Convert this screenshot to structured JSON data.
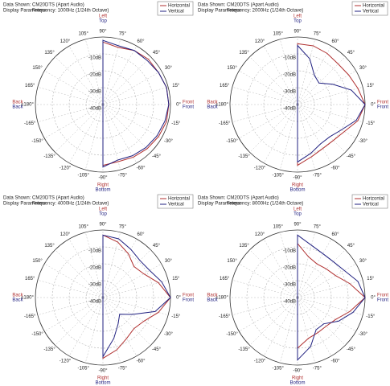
{
  "chart_data": [
    {
      "type": "polar",
      "header": [
        "Data Shown:",
        "CM20DTS (Apart Audio)",
        "Display Parameters:",
        "Frequency: 1000Hz (1/24th Octave)"
      ],
      "directions": {
        "top": [
          "Left",
          "Top"
        ],
        "bottom": [
          "Right",
          "Bottom"
        ],
        "right": [
          "Front",
          "Front"
        ],
        "left": [
          "Back",
          "Back"
        ]
      },
      "x": [
        90,
        75,
        60,
        45,
        30,
        15,
        0,
        -15,
        -30,
        -45,
        -60,
        -75,
        -90
      ],
      "series": [
        {
          "name": "Horizontal",
          "color": "#b03030",
          "values": [
            -3,
            -5,
            -3,
            -2,
            -2,
            -1,
            -1,
            -1,
            -2,
            -3,
            -4,
            -5,
            -4
          ]
        },
        {
          "name": "Vertical",
          "color": "#202080",
          "values": [
            -2,
            -4,
            -3,
            -3,
            -2,
            -1,
            -1,
            -2,
            -3,
            -4,
            -5,
            -6,
            -3
          ]
        }
      ],
      "rlim": [
        -40,
        0
      ],
      "rticks": [
        {
          "value": -10,
          "label": "-10dB"
        },
        {
          "value": -20,
          "label": "-20dB"
        },
        {
          "value": -30,
          "label": "-30dB"
        },
        {
          "value": -40,
          "label": "-40dB"
        }
      ],
      "angle_ticks": [
        {
          "value": 90,
          "label": "90°"
        },
        {
          "value": 75,
          "label": "75°"
        },
        {
          "value": 60,
          "label": "60°"
        },
        {
          "value": 45,
          "label": "45°"
        },
        {
          "value": 30,
          "label": "30°"
        },
        {
          "value": 15,
          "label": "15°"
        },
        {
          "value": 0,
          "label": "0°"
        },
        {
          "value": -15,
          "label": "-15°"
        },
        {
          "value": -30,
          "label": "-30°"
        },
        {
          "value": -45,
          "label": "-45°"
        },
        {
          "value": -60,
          "label": "-60°"
        },
        {
          "value": -75,
          "label": "-75°"
        },
        {
          "value": -90,
          "label": "-90°"
        },
        {
          "value": -105,
          "label": "-105°"
        },
        {
          "value": -120,
          "label": "-120°"
        },
        {
          "value": -135,
          "label": "-135°"
        },
        {
          "value": -150,
          "label": "-150°"
        },
        {
          "value": -165,
          "label": "-165°"
        },
        {
          "value": 180,
          "label": "±180°"
        },
        {
          "value": 165,
          "label": "165°"
        },
        {
          "value": 150,
          "label": "150°"
        },
        {
          "value": 135,
          "label": "135°"
        },
        {
          "value": 120,
          "label": "120°"
        },
        {
          "value": 105,
          "label": "105°"
        }
      ]
    },
    {
      "type": "polar",
      "header": [
        "Data Shown:",
        "CM20DTS (Apart Audio)",
        "Display Parameters:",
        "Frequency: 2000Hz (1/24th Octave)"
      ],
      "directions": {
        "top": [
          "Left",
          "Top"
        ],
        "bottom": [
          "Right",
          "Bottom"
        ],
        "right": [
          "Front",
          "Front"
        ],
        "left": [
          "Back",
          "Back"
        ]
      },
      "x": [
        90,
        75,
        60,
        45,
        30,
        15,
        0,
        -15,
        -30,
        -45,
        -60,
        -75,
        -90
      ],
      "series": [
        {
          "name": "Horizontal",
          "color": "#b03030",
          "values": [
            -4,
            -4,
            -5,
            -6,
            -5,
            -3,
            0,
            -3,
            -8,
            -10,
            -10,
            -8,
            -4
          ]
        },
        {
          "name": "Vertical",
          "color": "#202080",
          "values": [
            -5,
            -12,
            -20,
            -22,
            -16,
            -7,
            0,
            -4,
            -10,
            -13,
            -13,
            -10,
            -6
          ]
        }
      ],
      "rlim": [
        -40,
        0
      ],
      "rticks": [
        {
          "value": -10,
          "label": "-10dB"
        },
        {
          "value": -20,
          "label": "-20dB"
        },
        {
          "value": -30,
          "label": "-30dB"
        },
        {
          "value": -40,
          "label": "-40dB"
        }
      ],
      "angle_ticks": [
        {
          "value": 90,
          "label": "90°"
        },
        {
          "value": 75,
          "label": "75°"
        },
        {
          "value": 60,
          "label": "60°"
        },
        {
          "value": 45,
          "label": "45°"
        },
        {
          "value": 30,
          "label": "30°"
        },
        {
          "value": 15,
          "label": "15°"
        },
        {
          "value": 0,
          "label": "0°"
        },
        {
          "value": -15,
          "label": "-15°"
        },
        {
          "value": -30,
          "label": "-30°"
        },
        {
          "value": -45,
          "label": "-45°"
        },
        {
          "value": -60,
          "label": "-60°"
        },
        {
          "value": -75,
          "label": "-75°"
        },
        {
          "value": -90,
          "label": "-90°"
        },
        {
          "value": -105,
          "label": "-105°"
        },
        {
          "value": -120,
          "label": "-120°"
        },
        {
          "value": -135,
          "label": "-135°"
        },
        {
          "value": -150,
          "label": "-150°"
        },
        {
          "value": -165,
          "label": "-165°"
        },
        {
          "value": 180,
          "label": "±180°"
        },
        {
          "value": 165,
          "label": "165°"
        },
        {
          "value": 150,
          "label": "150°"
        },
        {
          "value": 135,
          "label": "135°"
        },
        {
          "value": 120,
          "label": "120°"
        },
        {
          "value": 105,
          "label": "105°"
        }
      ]
    },
    {
      "type": "polar",
      "header": [
        "Data Shown:",
        "CM20DTS (Apart Audio)",
        "Display Parameters:",
        "Frequency: 4000Hz (1/24th Octave)"
      ],
      "directions": {
        "top": [
          "Left",
          "Top"
        ],
        "bottom": [
          "Right",
          "Bottom"
        ],
        "right": [
          "Front",
          "Front"
        ],
        "left": [
          "Back",
          "Back"
        ]
      },
      "x": [
        90,
        75,
        60,
        45,
        30,
        15,
        0,
        -15,
        -30,
        -45,
        -60,
        -75,
        -90
      ],
      "series": [
        {
          "name": "Horizontal",
          "color": "#b03030",
          "values": [
            -3,
            -6,
            -10,
            -14,
            -12,
            -6,
            0,
            -6,
            -12,
            -14,
            -12,
            -8,
            -4
          ]
        },
        {
          "name": "Vertical",
          "color": "#202080",
          "values": [
            -3,
            -4,
            -7,
            -9,
            -8,
            -4,
            0,
            -8,
            -20,
            -26,
            -22,
            -15,
            -5
          ]
        }
      ],
      "rlim": [
        -40,
        0
      ],
      "rticks": [
        {
          "value": -10,
          "label": "-10dB"
        },
        {
          "value": -20,
          "label": "-20dB"
        },
        {
          "value": -30,
          "label": "-30dB"
        },
        {
          "value": -40,
          "label": "-40dB"
        }
      ],
      "angle_ticks": [
        {
          "value": 90,
          "label": "90°"
        },
        {
          "value": 75,
          "label": "75°"
        },
        {
          "value": 60,
          "label": "60°"
        },
        {
          "value": 45,
          "label": "45°"
        },
        {
          "value": 30,
          "label": "30°"
        },
        {
          "value": 15,
          "label": "15°"
        },
        {
          "value": 0,
          "label": "0°"
        },
        {
          "value": -15,
          "label": "-15°"
        },
        {
          "value": -30,
          "label": "-30°"
        },
        {
          "value": -45,
          "label": "-45°"
        },
        {
          "value": -60,
          "label": "-60°"
        },
        {
          "value": -75,
          "label": "-75°"
        },
        {
          "value": -90,
          "label": "-90°"
        },
        {
          "value": -105,
          "label": "-105°"
        },
        {
          "value": -120,
          "label": "-120°"
        },
        {
          "value": -135,
          "label": "-135°"
        },
        {
          "value": -150,
          "label": "-150°"
        },
        {
          "value": -165,
          "label": "-165°"
        },
        {
          "value": 180,
          "label": "±180°"
        },
        {
          "value": 165,
          "label": "165°"
        },
        {
          "value": 150,
          "label": "150°"
        },
        {
          "value": 135,
          "label": "135°"
        },
        {
          "value": 120,
          "label": "120°"
        },
        {
          "value": 105,
          "label": "105°"
        }
      ]
    },
    {
      "type": "polar",
      "header": [
        "Data Shown:",
        "CM20DTS (Apart Audio)",
        "Display Parameters:",
        "Frequency: 8000Hz (1/24th Octave)"
      ],
      "directions": {
        "top": [
          "Left",
          "Top"
        ],
        "bottom": [
          "Right",
          "Bottom"
        ],
        "right": [
          "Front",
          "Front"
        ],
        "left": [
          "Back",
          "Back"
        ]
      },
      "x": [
        90,
        75,
        60,
        45,
        30,
        15,
        0,
        -15,
        -30,
        -45,
        -60,
        -75,
        -90
      ],
      "series": [
        {
          "name": "Horizontal",
          "color": "#b03030",
          "values": [
            -8,
            -15,
            -17,
            -16,
            -14,
            -8,
            0,
            -8,
            -14,
            -16,
            -16,
            -15,
            -10
          ]
        },
        {
          "name": "Vertical",
          "color": "#202080",
          "values": [
            -3,
            -8,
            -10,
            -10,
            -8,
            -3,
            0,
            -6,
            -12,
            -18,
            -18,
            -10,
            -3
          ]
        }
      ],
      "rlim": [
        -40,
        0
      ],
      "rticks": [
        {
          "value": -10,
          "label": "-10dB"
        },
        {
          "value": -20,
          "label": "-20dB"
        },
        {
          "value": -30,
          "label": "-30dB"
        },
        {
          "value": -40,
          "label": "-40dB"
        }
      ],
      "angle_ticks": [
        {
          "value": 90,
          "label": "90°"
        },
        {
          "value": 75,
          "label": "75°"
        },
        {
          "value": 60,
          "label": "60°"
        },
        {
          "value": 45,
          "label": "45°"
        },
        {
          "value": 30,
          "label": "30°"
        },
        {
          "value": 15,
          "label": "15°"
        },
        {
          "value": 0,
          "label": "0°"
        },
        {
          "value": -15,
          "label": "-15°"
        },
        {
          "value": -30,
          "label": "-30°"
        },
        {
          "value": -45,
          "label": "-45°"
        },
        {
          "value": -60,
          "label": "-60°"
        },
        {
          "value": -75,
          "label": "-75°"
        },
        {
          "value": -90,
          "label": "-90°"
        },
        {
          "value": -105,
          "label": "-105°"
        },
        {
          "value": -120,
          "label": "-120°"
        },
        {
          "value": -135,
          "label": "-135°"
        },
        {
          "value": -150,
          "label": "-150°"
        },
        {
          "value": -165,
          "label": "-165°"
        },
        {
          "value": 180,
          "label": "±180°"
        },
        {
          "value": 165,
          "label": "165°"
        },
        {
          "value": 150,
          "label": "150°"
        },
        {
          "value": 135,
          "label": "135°"
        },
        {
          "value": 120,
          "label": "120°"
        },
        {
          "value": 105,
          "label": "105°"
        }
      ]
    }
  ]
}
